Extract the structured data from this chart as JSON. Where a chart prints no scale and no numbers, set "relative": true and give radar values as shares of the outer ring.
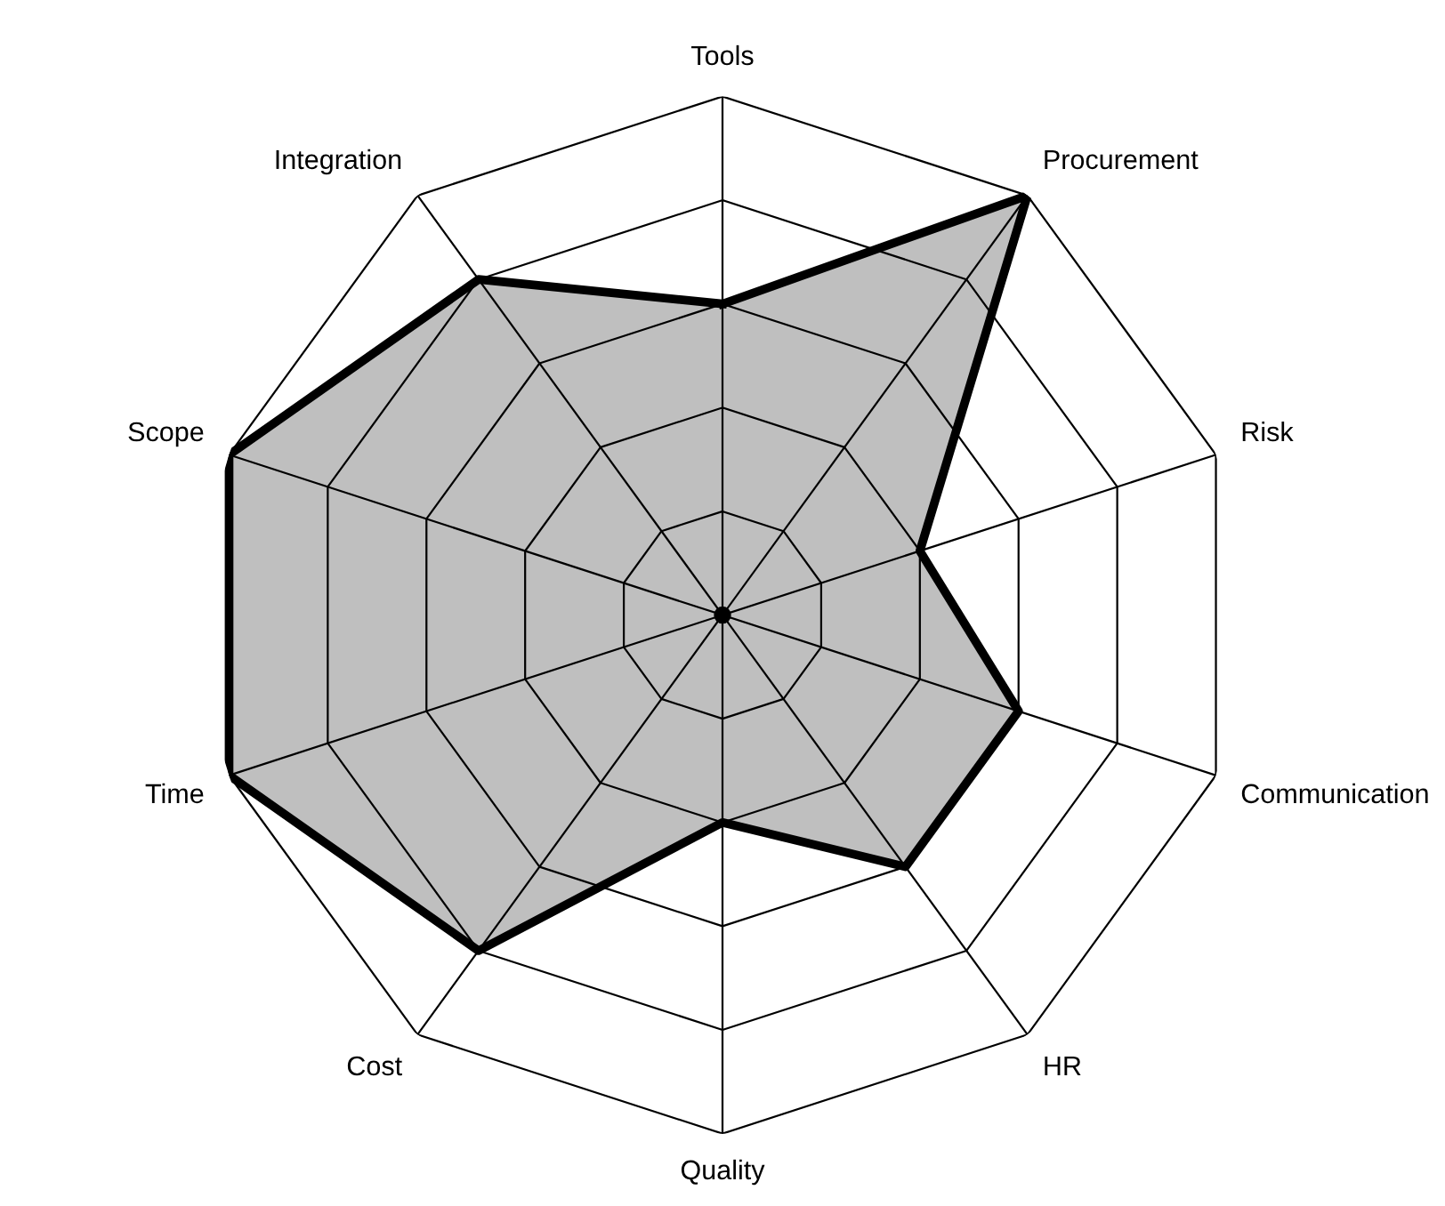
{
  "chart_data": {
    "type": "radar",
    "relative": true,
    "grid": true,
    "categories": [
      "Tools",
      "Procurement",
      "Risk",
      "Communication",
      "HR",
      "Quality",
      "Cost",
      "Time",
      "Scope",
      "Integration"
    ],
    "series": [
      {
        "color": "#000000",
        "values": [
          0.6,
          1,
          0.4,
          0.6,
          0.6,
          0.4,
          0.8,
          1,
          1,
          0.8
        ]
      }
    ]
  }
}
